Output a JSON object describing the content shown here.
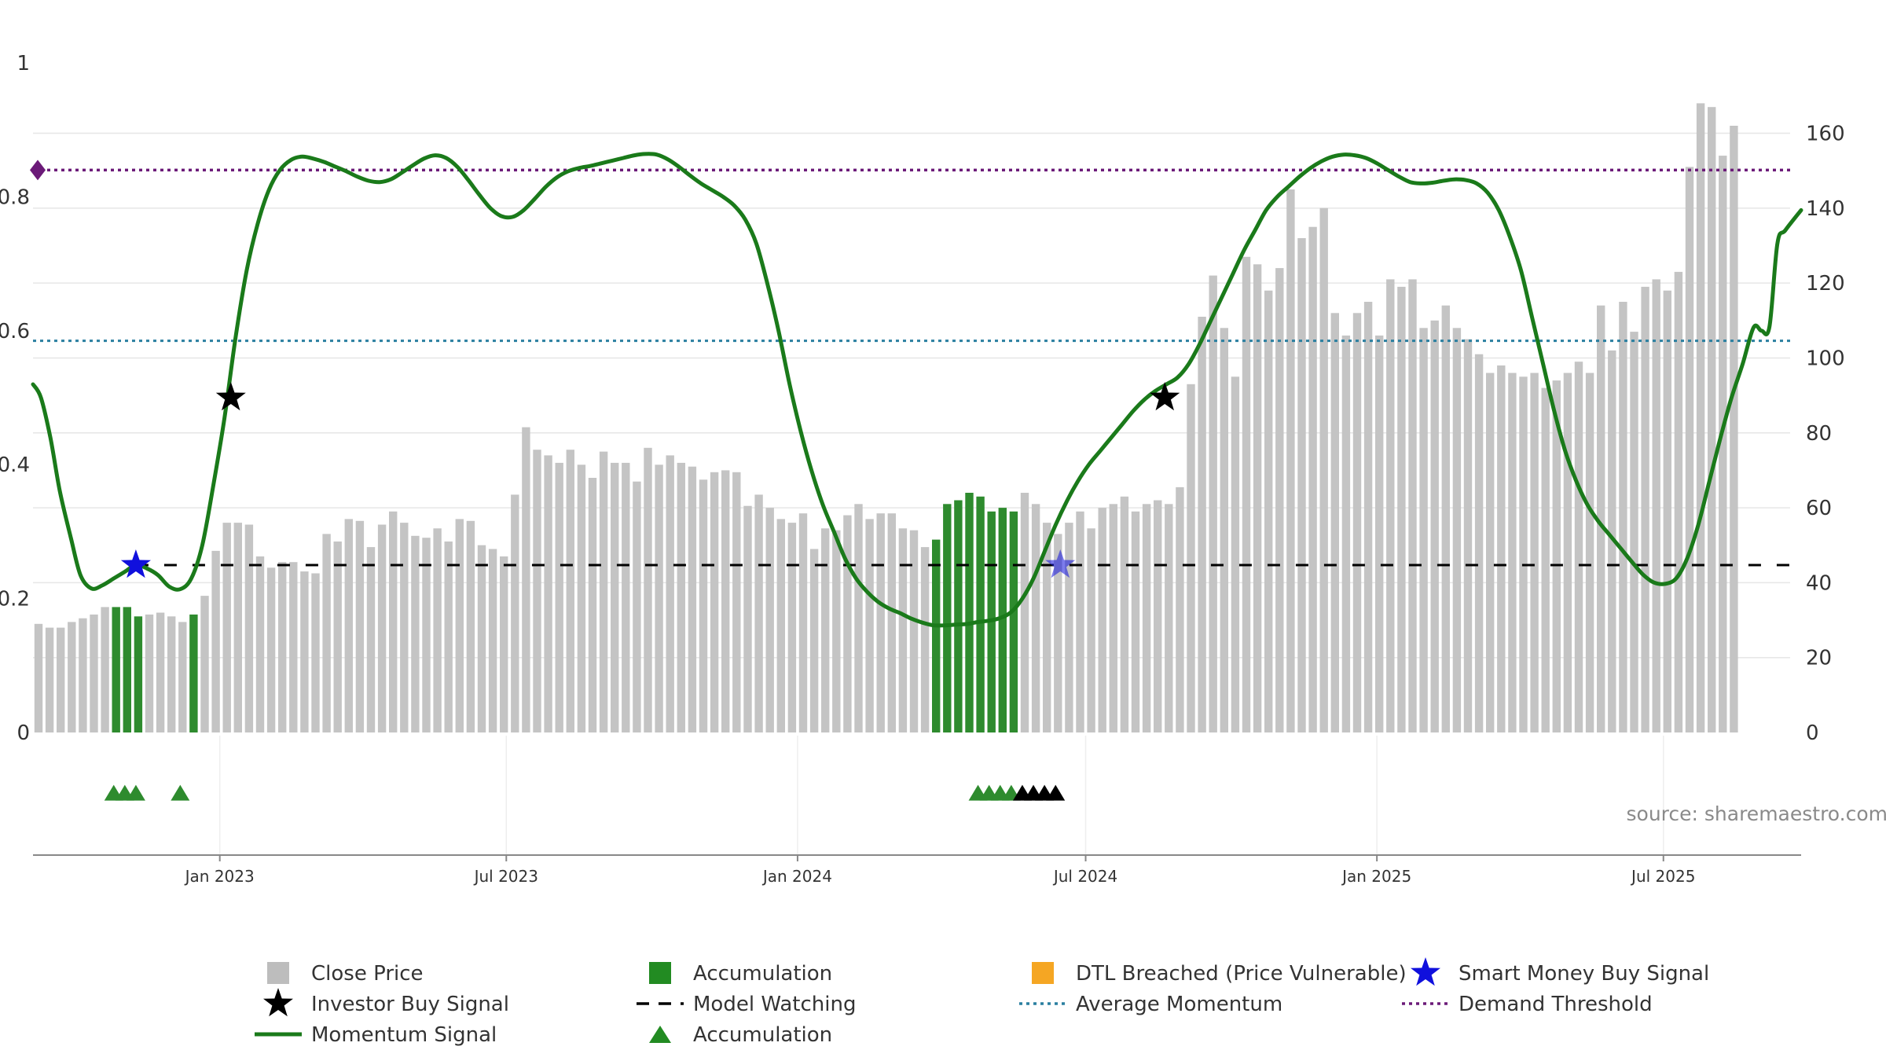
{
  "chart_data": {
    "type": "bar",
    "source_text": "source: sharemaestro.com",
    "left_axis": {
      "ticks": [
        0,
        0.2,
        0.4,
        0.6,
        0.8,
        1
      ],
      "tick_labels": [
        "0",
        "0.2",
        "0.4",
        "0.6",
        "0.8",
        "1"
      ],
      "ylim": [
        0,
        1
      ]
    },
    "right_axis": {
      "ticks": [
        0,
        20,
        40,
        60,
        80,
        100,
        120,
        140,
        160
      ],
      "tick_labels": [
        "0",
        "20",
        "40",
        "60",
        "80",
        "100",
        "120",
        "140",
        "160"
      ],
      "ylim": [
        0,
        177
      ]
    },
    "x_axis": {
      "start": "2022-09-05",
      "end": "2025-09-26",
      "ticks": [
        "2023-01-01",
        "2023-07-01",
        "2024-01-01",
        "2024-07-01",
        "2025-01-01",
        "2025-07-01"
      ],
      "tick_labels": [
        "Jan 2023",
        "Jul 2023",
        "Jan 2024",
        "Jul 2024",
        "Jan 2025",
        "Jul 2025"
      ]
    },
    "bar_start_week": "2022-09-05",
    "close_price": [
      29,
      28,
      28,
      29.5,
      30.5,
      31.5,
      33.5,
      33.5,
      33.5,
      31,
      31.5,
      32,
      31,
      29.5,
      31.5,
      36.5,
      48.5,
      56,
      56,
      55.5,
      47,
      44,
      45.5,
      45.5,
      43,
      42.5,
      53,
      51,
      57,
      56.5,
      49.5,
      55.5,
      59,
      56,
      52.5,
      52,
      54.5,
      51,
      57,
      56.5,
      50,
      49,
      47,
      63.5,
      81.5,
      75.5,
      74,
      72,
      75.5,
      71.5,
      68,
      75,
      72,
      72,
      67,
      76,
      71.5,
      74,
      72,
      71,
      67.5,
      69.5,
      70,
      69.5,
      60.5,
      63.5,
      60,
      57,
      56,
      58.5,
      49,
      54.5,
      54,
      58,
      61,
      57,
      58.5,
      58.5,
      54.5,
      54,
      49.5,
      51.5,
      61,
      62,
      64,
      63,
      59,
      60,
      59,
      64,
      61,
      56,
      53,
      56,
      59,
      54.5,
      60,
      61,
      63,
      59,
      61,
      62,
      61,
      65.5,
      93,
      111,
      122,
      108,
      95,
      127,
      125,
      118,
      124,
      145,
      132,
      135,
      140,
      112,
      106,
      112,
      115,
      106,
      121,
      119,
      121,
      108,
      110,
      114,
      108,
      105,
      101,
      96,
      98,
      96,
      95,
      96,
      92,
      94,
      96,
      99,
      96,
      114,
      102,
      115,
      107,
      119,
      121,
      118,
      123,
      151,
      168,
      167,
      154,
      162
    ],
    "bar_category": [
      "close",
      "close",
      "close",
      "close",
      "close",
      "close",
      "close",
      "acc",
      "acc",
      "acc",
      "close",
      "close",
      "close",
      "close",
      "acc",
      "close",
      "close",
      "close",
      "close",
      "close",
      "close",
      "close",
      "close",
      "close",
      "close",
      "close",
      "close",
      "close",
      "close",
      "close",
      "close",
      "close",
      "close",
      "close",
      "close",
      "close",
      "close",
      "close",
      "close",
      "close",
      "close",
      "close",
      "close",
      "close",
      "close",
      "close",
      "close",
      "close",
      "close",
      "close",
      "close",
      "close",
      "close",
      "close",
      "close",
      "close",
      "close",
      "close",
      "close",
      "close",
      "close",
      "close",
      "close",
      "close",
      "close",
      "close",
      "close",
      "close",
      "close",
      "close",
      "close",
      "close",
      "close",
      "close",
      "close",
      "close",
      "close",
      "close",
      "close",
      "close",
      "close",
      "acc",
      "acc",
      "acc",
      "acc",
      "acc",
      "acc",
      "acc",
      "acc",
      "close",
      "close",
      "close",
      "close",
      "close",
      "close",
      "close",
      "close",
      "close",
      "close",
      "close",
      "close",
      "close",
      "close",
      "close",
      "close",
      "close",
      "close",
      "close",
      "close",
      "close",
      "close",
      "close",
      "close",
      "close",
      "close",
      "close",
      "close",
      "close",
      "close",
      "close",
      "close",
      "close",
      "close",
      "close",
      "close",
      "close",
      "close",
      "close",
      "close",
      "close",
      "close",
      "close",
      "close",
      "close",
      "close",
      "close",
      "close",
      "close",
      "close",
      "close",
      "close",
      "close",
      "close",
      "close",
      "close",
      "close",
      "close",
      "close",
      "close",
      "close",
      "close",
      "close",
      "close",
      "close",
      "dtl",
      "dtl",
      "dtl",
      "dtl",
      "dtl"
    ],
    "momentum_signal": [
      [
        "2022-09-05",
        0.52
      ],
      [
        "2022-09-10",
        0.5
      ],
      [
        "2022-09-16",
        0.44
      ],
      [
        "2022-09-22",
        0.36
      ],
      [
        "2022-09-29",
        0.29
      ],
      [
        "2022-10-05",
        0.235
      ],
      [
        "2022-10-12",
        0.215
      ],
      [
        "2022-10-19",
        0.22
      ],
      [
        "2022-10-26",
        0.23
      ],
      [
        "2022-11-02",
        0.24
      ],
      [
        "2022-11-09",
        0.25
      ],
      [
        "2022-11-16",
        0.245
      ],
      [
        "2022-11-23",
        0.235
      ],
      [
        "2022-11-30",
        0.218
      ],
      [
        "2022-12-07",
        0.214
      ],
      [
        "2022-12-14",
        0.23
      ],
      [
        "2022-12-21",
        0.28
      ],
      [
        "2022-12-28",
        0.37
      ],
      [
        "2023-01-04",
        0.47
      ],
      [
        "2023-01-11",
        0.59
      ],
      [
        "2023-01-18",
        0.69
      ],
      [
        "2023-01-25",
        0.76
      ],
      [
        "2023-02-01",
        0.81
      ],
      [
        "2023-02-08",
        0.84
      ],
      [
        "2023-02-15",
        0.855
      ],
      [
        "2023-02-22",
        0.86
      ],
      [
        "2023-03-01",
        0.857
      ],
      [
        "2023-03-08",
        0.852
      ],
      [
        "2023-03-15",
        0.845
      ],
      [
        "2023-03-22",
        0.838
      ],
      [
        "2023-03-29",
        0.83
      ],
      [
        "2023-04-05",
        0.824
      ],
      [
        "2023-04-12",
        0.822
      ],
      [
        "2023-04-19",
        0.826
      ],
      [
        "2023-04-26",
        0.836
      ],
      [
        "2023-05-03",
        0.847
      ],
      [
        "2023-05-10",
        0.857
      ],
      [
        "2023-05-17",
        0.862
      ],
      [
        "2023-05-24",
        0.858
      ],
      [
        "2023-05-31",
        0.845
      ],
      [
        "2023-06-07",
        0.825
      ],
      [
        "2023-06-14",
        0.803
      ],
      [
        "2023-06-21",
        0.783
      ],
      [
        "2023-06-28",
        0.771
      ],
      [
        "2023-07-05",
        0.77
      ],
      [
        "2023-07-12",
        0.78
      ],
      [
        "2023-07-19",
        0.797
      ],
      [
        "2023-07-26",
        0.815
      ],
      [
        "2023-08-02",
        0.829
      ],
      [
        "2023-08-09",
        0.838
      ],
      [
        "2023-08-16",
        0.843
      ],
      [
        "2023-08-23",
        0.846
      ],
      [
        "2023-08-30",
        0.85
      ],
      [
        "2023-09-06",
        0.854
      ],
      [
        "2023-09-13",
        0.858
      ],
      [
        "2023-09-20",
        0.862
      ],
      [
        "2023-09-27",
        0.864
      ],
      [
        "2023-10-04",
        0.863
      ],
      [
        "2023-10-11",
        0.856
      ],
      [
        "2023-10-18",
        0.845
      ],
      [
        "2023-10-25",
        0.832
      ],
      [
        "2023-11-01",
        0.82
      ],
      [
        "2023-11-08",
        0.81
      ],
      [
        "2023-11-15",
        0.8
      ],
      [
        "2023-11-22",
        0.787
      ],
      [
        "2023-11-29",
        0.766
      ],
      [
        "2023-12-06",
        0.73
      ],
      [
        "2023-12-13",
        0.67
      ],
      [
        "2023-12-20",
        0.6
      ],
      [
        "2023-12-27",
        0.52
      ],
      [
        "2024-01-03",
        0.45
      ],
      [
        "2024-01-10",
        0.39
      ],
      [
        "2024-01-17",
        0.34
      ],
      [
        "2024-01-24",
        0.3
      ],
      [
        "2024-01-31",
        0.26
      ],
      [
        "2024-02-07",
        0.23
      ],
      [
        "2024-02-14",
        0.21
      ],
      [
        "2024-02-21",
        0.195
      ],
      [
        "2024-02-28",
        0.185
      ],
      [
        "2024-03-06",
        0.178
      ],
      [
        "2024-03-13",
        0.17
      ],
      [
        "2024-03-20",
        0.164
      ],
      [
        "2024-03-27",
        0.16
      ],
      [
        "2024-04-03",
        0.16
      ],
      [
        "2024-04-10",
        0.161
      ],
      [
        "2024-04-17",
        0.162
      ],
      [
        "2024-04-24",
        0.165
      ],
      [
        "2024-05-01",
        0.167
      ],
      [
        "2024-05-08",
        0.171
      ],
      [
        "2024-05-15",
        0.18
      ],
      [
        "2024-05-22",
        0.2
      ],
      [
        "2024-05-29",
        0.23
      ],
      [
        "2024-06-05",
        0.27
      ],
      [
        "2024-06-12",
        0.31
      ],
      [
        "2024-06-19",
        0.345
      ],
      [
        "2024-06-26",
        0.375
      ],
      [
        "2024-07-03",
        0.4
      ],
      [
        "2024-07-10",
        0.42
      ],
      [
        "2024-07-17",
        0.44
      ],
      [
        "2024-07-24",
        0.46
      ],
      [
        "2024-07-31",
        0.48
      ],
      [
        "2024-08-07",
        0.497
      ],
      [
        "2024-08-14",
        0.51
      ],
      [
        "2024-08-21",
        0.52
      ],
      [
        "2024-08-28",
        0.53
      ],
      [
        "2024-09-04",
        0.55
      ],
      [
        "2024-09-11",
        0.58
      ],
      [
        "2024-09-18",
        0.615
      ],
      [
        "2024-09-25",
        0.65
      ],
      [
        "2024-10-02",
        0.685
      ],
      [
        "2024-10-09",
        0.72
      ],
      [
        "2024-10-16",
        0.75
      ],
      [
        "2024-10-23",
        0.78
      ],
      [
        "2024-10-30",
        0.8
      ],
      [
        "2024-11-06",
        0.815
      ],
      [
        "2024-11-13",
        0.83
      ],
      [
        "2024-11-20",
        0.843
      ],
      [
        "2024-11-27",
        0.853
      ],
      [
        "2024-12-04",
        0.86
      ],
      [
        "2024-12-11",
        0.863
      ],
      [
        "2024-12-18",
        0.862
      ],
      [
        "2024-12-25",
        0.858
      ],
      [
        "2025-01-01",
        0.85
      ],
      [
        "2025-01-08",
        0.84
      ],
      [
        "2025-01-15",
        0.83
      ],
      [
        "2025-01-22",
        0.822
      ],
      [
        "2025-01-29",
        0.82
      ],
      [
        "2025-02-05",
        0.821
      ],
      [
        "2025-02-12",
        0.824
      ],
      [
        "2025-02-19",
        0.826
      ],
      [
        "2025-02-26",
        0.825
      ],
      [
        "2025-03-05",
        0.82
      ],
      [
        "2025-03-12",
        0.806
      ],
      [
        "2025-03-19",
        0.78
      ],
      [
        "2025-03-26",
        0.74
      ],
      [
        "2025-04-02",
        0.69
      ],
      [
        "2025-04-09",
        0.62
      ],
      [
        "2025-04-16",
        0.55
      ],
      [
        "2025-04-23",
        0.48
      ],
      [
        "2025-04-30",
        0.42
      ],
      [
        "2025-05-07",
        0.375
      ],
      [
        "2025-05-14",
        0.34
      ],
      [
        "2025-05-21",
        0.315
      ],
      [
        "2025-05-28",
        0.295
      ],
      [
        "2025-06-04",
        0.275
      ],
      [
        "2025-06-11",
        0.255
      ],
      [
        "2025-06-18",
        0.236
      ],
      [
        "2025-06-25",
        0.224
      ],
      [
        "2025-07-02",
        0.222
      ],
      [
        "2025-07-09",
        0.23
      ],
      [
        "2025-07-16",
        0.26
      ],
      [
        "2025-07-23",
        0.31
      ],
      [
        "2025-07-30",
        0.375
      ],
      [
        "2025-08-06",
        0.44
      ],
      [
        "2025-08-13",
        0.5
      ],
      [
        "2025-08-20",
        0.55
      ],
      [
        "2025-08-27",
        0.605
      ],
      [
        "2025-09-01",
        0.6
      ],
      [
        "2025-09-06",
        0.606
      ],
      [
        "2025-09-11",
        0.73
      ],
      [
        "2025-09-16",
        0.75
      ],
      [
        "2025-09-26",
        0.78
      ]
    ],
    "demand_threshold": 0.84,
    "average_momentum": 0.585,
    "model_watching": {
      "level": 0.25,
      "from": "2022-11-09",
      "to": "2025-09-26"
    },
    "investor_buy_signals": [
      [
        "2023-01-08",
        0.5
      ],
      [
        "2024-08-20",
        0.5
      ]
    ],
    "smart_money_buy_signals": [
      [
        "2022-11-09",
        0.25
      ],
      [
        "2024-06-15",
        0.25
      ]
    ],
    "accumulation_triangles": {
      "y": -0.09,
      "green": [
        "2022-10-26",
        "2022-11-02",
        "2022-11-09",
        "2022-12-07",
        "2024-04-24",
        "2024-05-01",
        "2024-05-08",
        "2024-05-15"
      ],
      "black": [
        "2024-05-22",
        "2024-05-29",
        "2024-06-05",
        "2024-06-12"
      ]
    },
    "legend": [
      {
        "key": "close",
        "label": "Close Price",
        "color": "#bdbdbd",
        "marker": "square"
      },
      {
        "key": "acc_bar",
        "label": "Accumulation",
        "color": "#228b22",
        "marker": "square"
      },
      {
        "key": "dtl",
        "label": "DTL Breached (Price Vulnerable)",
        "color": "#f5a623",
        "marker": "square"
      },
      {
        "key": "smart",
        "label": "Smart Money Buy Signal",
        "color": "#1010dd",
        "marker": "star"
      },
      {
        "key": "investor",
        "label": "Investor Buy Signal",
        "color": "#000000",
        "marker": "star"
      },
      {
        "key": "watching",
        "label": "Model Watching",
        "color": "#000000",
        "marker": "dash"
      },
      {
        "key": "avg",
        "label": "Average Momentum",
        "color": "#2a7fa0",
        "marker": "dot"
      },
      {
        "key": "demand",
        "label": "Demand Threshold",
        "color": "#6b1a78",
        "marker": "dot"
      },
      {
        "key": "momentum",
        "label": "Momentum Signal",
        "color": "#1a7a1a",
        "marker": "line"
      },
      {
        "key": "acc_tri",
        "label": "Accumulation",
        "color": "#228b22",
        "marker": "triangle"
      }
    ],
    "colors": {
      "close": "#c4c4c4",
      "accumulation": "#2e8b2e",
      "dtl": "#f9c97b",
      "momentum": "#1a7a1a",
      "demand": "#6b1a78",
      "average": "#2a7fa0",
      "watching": "#000000",
      "smart": "#1010dd",
      "investor": "#000000",
      "grid": "#e6e6e6"
    }
  }
}
